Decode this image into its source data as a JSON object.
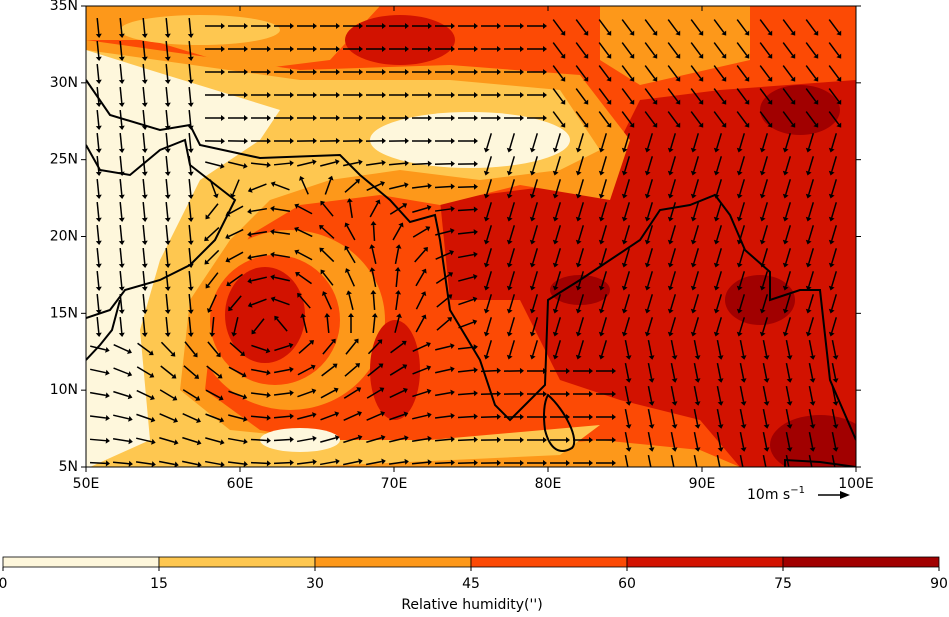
{
  "map": {
    "xlim": [
      50,
      100
    ],
    "ylim": [
      5,
      35
    ],
    "xticks": [
      {
        "value": 50,
        "label": "50E"
      },
      {
        "value": 60,
        "label": "60E"
      },
      {
        "value": 70,
        "label": "70E"
      },
      {
        "value": 80,
        "label": "80E"
      },
      {
        "value": 90,
        "label": "90E"
      },
      {
        "value": 100,
        "label": "100E"
      }
    ],
    "yticks": [
      {
        "value": 5,
        "label": "5N"
      },
      {
        "value": 10,
        "label": "10N"
      },
      {
        "value": 15,
        "label": "15N"
      },
      {
        "value": 20,
        "label": "20N"
      },
      {
        "value": 25,
        "label": "25N"
      },
      {
        "value": 30,
        "label": "30N"
      },
      {
        "value": 35,
        "label": "35N"
      }
    ],
    "quiver_key": {
      "text": "10m s",
      "exponent": "−1"
    },
    "colorbar": {
      "label": "Relative humidity('')",
      "ticks": [
        0,
        15,
        30,
        45,
        60,
        75,
        90
      ],
      "colors": [
        "#fef7dc",
        "#fec750",
        "#fd981a",
        "#fc4a05",
        "#d21200",
        "#a10000"
      ]
    }
  }
}
